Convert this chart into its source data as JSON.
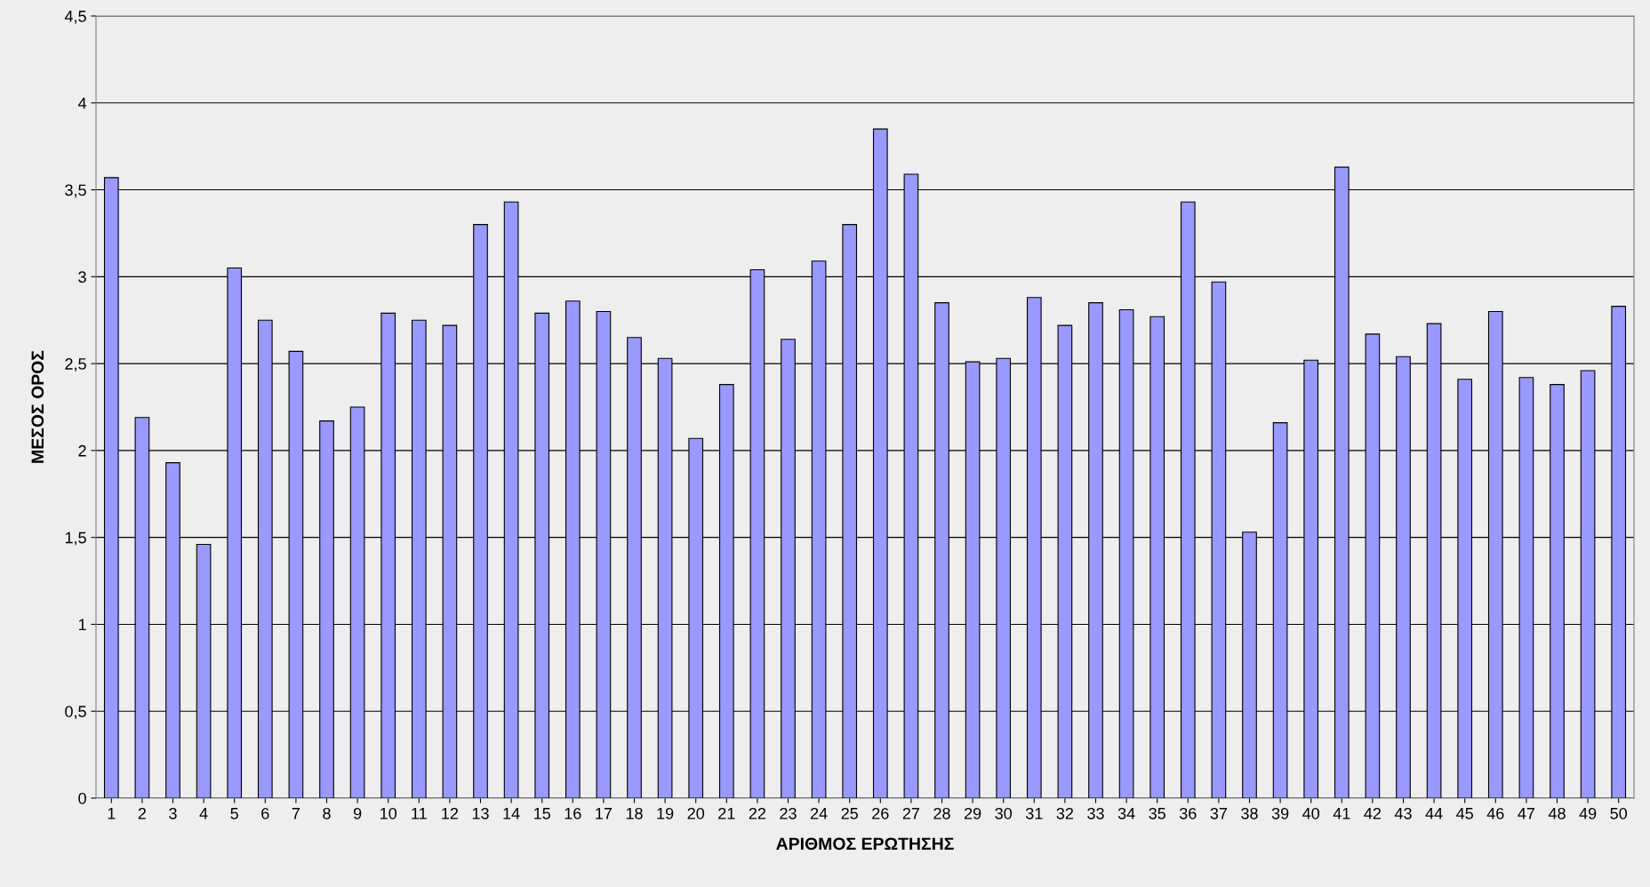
{
  "chart_data": {
    "type": "bar",
    "xlabel": "ΑΡΙΘΜΟΣ ΕΡΩΤΗΣΗΣ",
    "ylabel": "ΜΕΣΟΣ ΟΡΟΣ",
    "categories": [
      "1",
      "2",
      "3",
      "4",
      "5",
      "6",
      "7",
      "8",
      "9",
      "10",
      "11",
      "12",
      "13",
      "14",
      "15",
      "16",
      "17",
      "18",
      "19",
      "20",
      "21",
      "22",
      "23",
      "24",
      "25",
      "26",
      "27",
      "28",
      "29",
      "30",
      "31",
      "32",
      "33",
      "34",
      "35",
      "36",
      "37",
      "38",
      "39",
      "40",
      "41",
      "42",
      "43",
      "44",
      "45",
      "46",
      "47",
      "48",
      "49",
      "50"
    ],
    "values": [
      3.57,
      2.19,
      1.93,
      1.46,
      3.05,
      2.75,
      2.57,
      2.17,
      2.25,
      2.79,
      2.75,
      2.72,
      3.3,
      3.43,
      2.79,
      2.86,
      2.8,
      2.65,
      2.53,
      2.07,
      2.38,
      3.04,
      2.64,
      3.09,
      3.3,
      3.85,
      3.59,
      2.85,
      2.51,
      2.53,
      2.88,
      2.72,
      2.85,
      2.81,
      2.77,
      3.43,
      2.97,
      1.53,
      2.16,
      2.52,
      3.63,
      2.67,
      2.54,
      2.73,
      2.41,
      2.8,
      2.42,
      2.38,
      2.46,
      2.83
    ],
    "color": "#9999ff",
    "ylim": [
      0,
      4.5
    ],
    "yticks": [
      0,
      {
        "value": 0.5,
        "label": "0,5"
      },
      1,
      {
        "value": 1.5,
        "label": "1,5"
      },
      2,
      {
        "value": 2.5,
        "label": "2,5"
      },
      3,
      {
        "value": 3.5,
        "label": "3,5"
      },
      4,
      {
        "value": 4.5,
        "label": "4,5"
      }
    ],
    "grid": "y",
    "legend": false
  }
}
